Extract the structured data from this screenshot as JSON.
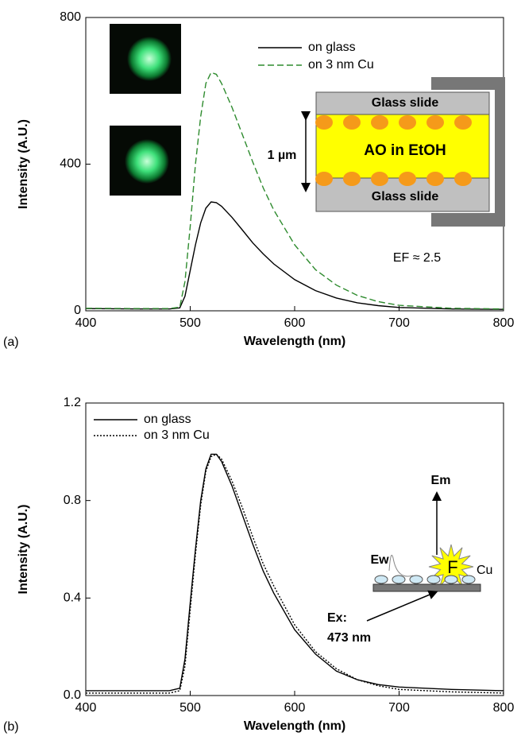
{
  "chart_data": [
    {
      "type": "line",
      "panel_label": "(a)",
      "xlabel": "Wavelength (nm)",
      "ylabel": "Intensity (A.U.)",
      "x": [
        400,
        450,
        480,
        490,
        495,
        500,
        505,
        510,
        515,
        520,
        525,
        530,
        540,
        550,
        560,
        570,
        580,
        600,
        620,
        640,
        660,
        680,
        700,
        750,
        800
      ],
      "series": [
        {
          "name": "on glass",
          "color": "#000000",
          "dash": "solid",
          "values": [
            6,
            5,
            5,
            8,
            40,
            110,
            180,
            240,
            280,
            297,
            295,
            285,
            255,
            220,
            185,
            155,
            128,
            85,
            55,
            35,
            22,
            14,
            9,
            5,
            4
          ]
        },
        {
          "name": "on 3 nm Cu",
          "color": "#2e8b2e",
          "dash": "dashed",
          "values": [
            7,
            6,
            6,
            10,
            80,
            230,
            400,
            530,
            620,
            650,
            645,
            620,
            555,
            480,
            405,
            335,
            275,
            180,
            112,
            70,
            42,
            25,
            15,
            7,
            5
          ]
        }
      ],
      "xlim": [
        400,
        800
      ],
      "xticks": [
        400,
        500,
        600,
        700,
        800
      ],
      "ylim": [
        0,
        800
      ],
      "yticks": [
        0,
        400,
        800
      ],
      "annotations": [
        "Glass slide",
        "AO in EtOH",
        "Glass slide",
        "1 µm",
        "EF ≈ 2.5"
      ]
    },
    {
      "type": "line",
      "panel_label": "(b)",
      "xlabel": "Wavelength (nm)",
      "ylabel": "Intensity (A.U.)",
      "x": [
        400,
        450,
        480,
        490,
        495,
        500,
        505,
        510,
        515,
        520,
        525,
        530,
        540,
        550,
        560,
        570,
        580,
        600,
        620,
        640,
        660,
        680,
        700,
        750,
        800
      ],
      "series": [
        {
          "name": "on glass",
          "color": "#000000",
          "dash": "solid",
          "values": [
            0.02,
            0.02,
            0.02,
            0.03,
            0.15,
            0.38,
            0.6,
            0.8,
            0.93,
            0.99,
            0.99,
            0.96,
            0.86,
            0.74,
            0.62,
            0.51,
            0.42,
            0.27,
            0.17,
            0.1,
            0.065,
            0.045,
            0.035,
            0.025,
            0.02
          ]
        },
        {
          "name": "on 3 nm Cu",
          "color": "#000000",
          "dash": "dotted",
          "values": [
            0.01,
            0.01,
            0.01,
            0.02,
            0.12,
            0.35,
            0.58,
            0.78,
            0.92,
            0.98,
            0.99,
            0.97,
            0.88,
            0.77,
            0.65,
            0.54,
            0.45,
            0.29,
            0.18,
            0.11,
            0.065,
            0.04,
            0.025,
            0.015,
            0.01
          ]
        }
      ],
      "xlim": [
        400,
        800
      ],
      "xticks": [
        400,
        500,
        600,
        700,
        800
      ],
      "ylim": [
        0,
        1.2
      ],
      "yticks": [
        {
          "value": 0,
          "label": "0.0"
        },
        0.4,
        0.8,
        1.2
      ],
      "annotations": [
        "Em",
        "Ew",
        "F",
        "Cu",
        "Ex:",
        "473 nm"
      ]
    }
  ]
}
